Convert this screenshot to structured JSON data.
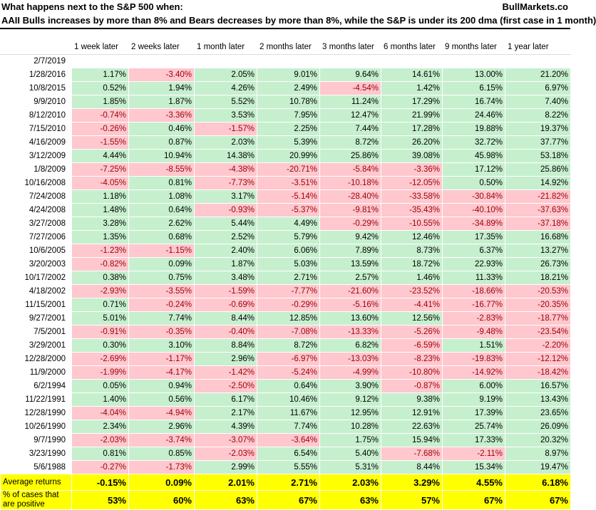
{
  "header": {
    "title": "What happens next to the S&P 500 when:",
    "subtitle": "AAII Bulls increases by more than 8% and Bears decreases by more than 8%, while the S&P is under its 200 dma (first case in 1 month)",
    "brand": "BullMarkets.co"
  },
  "columns": [
    "1 week later",
    "2 weeks later",
    "1 month later",
    "2 months later",
    "3 months later",
    "6 months later",
    "9 months later",
    "1 year later"
  ],
  "rows": [
    {
      "date": "2/7/2019",
      "values": [
        "",
        "",
        "",
        "",
        "",
        "",
        "",
        ""
      ]
    },
    {
      "date": "1/28/2016",
      "values": [
        "1.17%",
        "-3.40%",
        "2.05%",
        "9.01%",
        "9.64%",
        "14.61%",
        "13.00%",
        "21.20%"
      ]
    },
    {
      "date": "10/8/2015",
      "values": [
        "0.52%",
        "1.94%",
        "4.26%",
        "2.49%",
        "-4.54%",
        "1.42%",
        "6.15%",
        "6.97%"
      ]
    },
    {
      "date": "9/9/2010",
      "values": [
        "1.85%",
        "1.87%",
        "5.52%",
        "10.78%",
        "11.24%",
        "17.29%",
        "16.74%",
        "7.40%"
      ]
    },
    {
      "date": "8/12/2010",
      "values": [
        "-0.74%",
        "-3.36%",
        "3.53%",
        "7.95%",
        "12.47%",
        "21.99%",
        "24.46%",
        "8.22%"
      ]
    },
    {
      "date": "7/15/2010",
      "values": [
        "-0.26%",
        "0.46%",
        "-1.57%",
        "2.25%",
        "7.44%",
        "17.28%",
        "19.88%",
        "19.37%"
      ]
    },
    {
      "date": "4/16/2009",
      "values": [
        "-1.55%",
        "0.87%",
        "2.03%",
        "5.39%",
        "8.72%",
        "26.20%",
        "32.72%",
        "37.77%"
      ]
    },
    {
      "date": "3/12/2009",
      "values": [
        "4.44%",
        "10.94%",
        "14.38%",
        "20.99%",
        "25.86%",
        "39.08%",
        "45.98%",
        "53.18%"
      ]
    },
    {
      "date": "1/8/2009",
      "values": [
        "-7.25%",
        "-8.55%",
        "-4.38%",
        "-20.71%",
        "-5.84%",
        "-3.36%",
        "17.12%",
        "25.86%"
      ]
    },
    {
      "date": "10/16/2008",
      "values": [
        "-4.05%",
        "0.81%",
        "-7.73%",
        "-3.51%",
        "-10.18%",
        "-12.05%",
        "0.50%",
        "14.92%"
      ]
    },
    {
      "date": "7/24/2008",
      "values": [
        "1.18%",
        "1.08%",
        "3.17%",
        "-5.14%",
        "-28.40%",
        "-33.58%",
        "-30.84%",
        "-21.82%"
      ]
    },
    {
      "date": "4/24/2008",
      "values": [
        "1.48%",
        "0.64%",
        "-0.93%",
        "-5.37%",
        "-9.81%",
        "-35.43%",
        "-40.10%",
        "-37.63%"
      ]
    },
    {
      "date": "3/27/2008",
      "values": [
        "3.28%",
        "2.62%",
        "5.44%",
        "4.49%",
        "-0.29%",
        "-10.55%",
        "-34.89%",
        "-37.18%"
      ]
    },
    {
      "date": "7/27/2006",
      "values": [
        "1.35%",
        "0.68%",
        "2.52%",
        "5.79%",
        "9.42%",
        "12.46%",
        "17.35%",
        "16.68%"
      ]
    },
    {
      "date": "10/6/2005",
      "values": [
        "-1.23%",
        "-1.15%",
        "2.40%",
        "6.06%",
        "7.89%",
        "8.73%",
        "6.37%",
        "13.27%"
      ]
    },
    {
      "date": "3/20/2003",
      "values": [
        "-0.82%",
        "0.09%",
        "1.87%",
        "5.03%",
        "13.59%",
        "18.72%",
        "22.93%",
        "26.73%"
      ]
    },
    {
      "date": "10/17/2002",
      "values": [
        "0.38%",
        "0.75%",
        "3.48%",
        "2.71%",
        "2.57%",
        "1.46%",
        "11.33%",
        "18.21%"
      ]
    },
    {
      "date": "4/18/2002",
      "values": [
        "-2.93%",
        "-3.55%",
        "-1.59%",
        "-7.77%",
        "-21.60%",
        "-23.52%",
        "-18.66%",
        "-20.53%"
      ]
    },
    {
      "date": "11/15/2001",
      "values": [
        "0.71%",
        "-0.24%",
        "-0.69%",
        "-0.29%",
        "-5.16%",
        "-4.41%",
        "-16.77%",
        "-20.35%"
      ]
    },
    {
      "date": "9/27/2001",
      "values": [
        "5.01%",
        "7.74%",
        "8.44%",
        "12.85%",
        "13.60%",
        "12.56%",
        "-2.83%",
        "-18.77%"
      ]
    },
    {
      "date": "7/5/2001",
      "values": [
        "-0.91%",
        "-0.35%",
        "-0.40%",
        "-7.08%",
        "-13.33%",
        "-5.26%",
        "-9.48%",
        "-23.54%"
      ]
    },
    {
      "date": "3/29/2001",
      "values": [
        "0.30%",
        "3.10%",
        "8.84%",
        "8.72%",
        "6.82%",
        "-6.59%",
        "1.51%",
        "-2.20%"
      ]
    },
    {
      "date": "12/28/2000",
      "values": [
        "-2.69%",
        "-1.17%",
        "2.96%",
        "-6.97%",
        "-13.03%",
        "-8.23%",
        "-19.83%",
        "-12.12%"
      ]
    },
    {
      "date": "11/9/2000",
      "values": [
        "-1.99%",
        "-4.17%",
        "-1.42%",
        "-5.24%",
        "-4.99%",
        "-10.80%",
        "-14.92%",
        "-18.42%"
      ]
    },
    {
      "date": "6/2/1994",
      "values": [
        "0.05%",
        "0.94%",
        "-2.50%",
        "0.64%",
        "3.90%",
        "-0.87%",
        "6.00%",
        "16.57%"
      ]
    },
    {
      "date": "11/22/1991",
      "values": [
        "1.40%",
        "0.56%",
        "6.17%",
        "10.46%",
        "9.12%",
        "9.38%",
        "9.19%",
        "13.43%"
      ]
    },
    {
      "date": "12/28/1990",
      "values": [
        "-4.04%",
        "-4.94%",
        "2.17%",
        "11.67%",
        "12.95%",
        "12.91%",
        "17.39%",
        "23.65%"
      ]
    },
    {
      "date": "10/26/1990",
      "values": [
        "2.34%",
        "2.96%",
        "4.39%",
        "7.74%",
        "10.28%",
        "22.63%",
        "25.74%",
        "26.09%"
      ]
    },
    {
      "date": "9/7/1990",
      "values": [
        "-2.03%",
        "-3.74%",
        "-3.07%",
        "-3.64%",
        "1.75%",
        "15.94%",
        "17.33%",
        "20.32%"
      ]
    },
    {
      "date": "3/23/1990",
      "values": [
        "0.81%",
        "0.85%",
        "-2.03%",
        "6.54%",
        "5.40%",
        "-7.68%",
        "-2.11%",
        "8.97%"
      ]
    },
    {
      "date": "5/6/1988",
      "values": [
        "-0.27%",
        "-1.73%",
        "2.99%",
        "5.55%",
        "5.31%",
        "8.44%",
        "15.34%",
        "19.47%"
      ]
    }
  ],
  "summary": [
    {
      "label": "Average returns",
      "values": [
        "-0.15%",
        "0.09%",
        "2.01%",
        "2.71%",
        "2.03%",
        "3.29%",
        "4.55%",
        "6.18%"
      ]
    },
    {
      "label": "% of cases that are positive",
      "values": [
        "53%",
        "60%",
        "63%",
        "67%",
        "63%",
        "57%",
        "67%",
        "67%"
      ]
    }
  ],
  "colors": {
    "positive_fill": "#c6efce",
    "negative_fill": "#ffc7ce",
    "negative_text": "#9c0006",
    "summary_fill": "#ffff00"
  }
}
